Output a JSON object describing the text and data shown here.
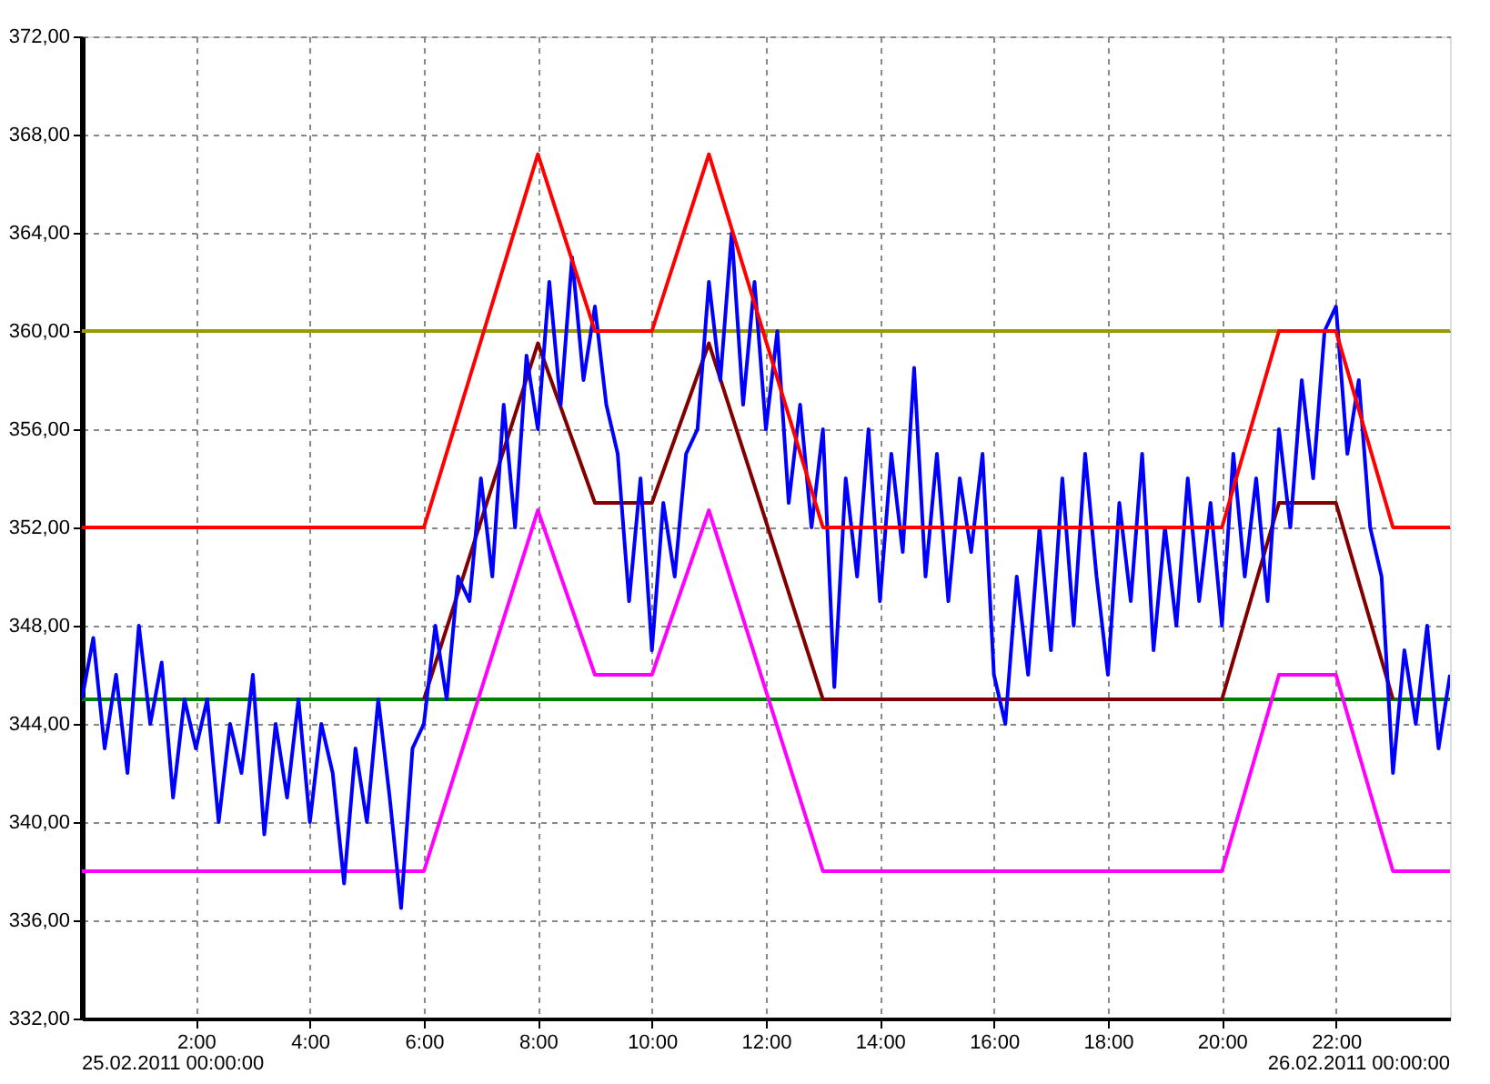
{
  "chart_data": {
    "type": "line",
    "xlim": [
      0,
      24
    ],
    "ylim": [
      332,
      372
    ],
    "annotations": [
      "25.02.2011 00:00:00",
      "26.02.2011 00:00:00"
    ],
    "xticks": [
      {
        "value": 2,
        "label": "2:00"
      },
      {
        "value": 4,
        "label": "4:00"
      },
      {
        "value": 6,
        "label": "6:00"
      },
      {
        "value": 8,
        "label": "8:00"
      },
      {
        "value": 10,
        "label": "10:00"
      },
      {
        "value": 12,
        "label": "12:00"
      },
      {
        "value": 14,
        "label": "14:00"
      },
      {
        "value": 16,
        "label": "16:00"
      },
      {
        "value": 18,
        "label": "18:00"
      },
      {
        "value": 20,
        "label": "20:00"
      },
      {
        "value": 22,
        "label": "22:00"
      }
    ],
    "yticks": [
      {
        "value": 332,
        "label": "332,00"
      },
      {
        "value": 336,
        "label": "336,00"
      },
      {
        "value": 340,
        "label": "340,00"
      },
      {
        "value": 344,
        "label": "344,00"
      },
      {
        "value": 348,
        "label": "348,00"
      },
      {
        "value": 352,
        "label": "352,00"
      },
      {
        "value": 356,
        "label": "356,00"
      },
      {
        "value": 360,
        "label": "360,00"
      },
      {
        "value": 364,
        "label": "364,00"
      },
      {
        "value": 368,
        "label": "368,00"
      },
      {
        "value": 372,
        "label": "372,00"
      }
    ],
    "grid": true,
    "legend": false,
    "line_style": "solid",
    "marker": "none",
    "ref_lines": [
      {
        "axis": "y",
        "value": 360,
        "label": null,
        "color": "#999900"
      },
      {
        "axis": "y",
        "value": 345,
        "label": null,
        "color": "#008000"
      }
    ],
    "series": [
      {
        "color": "#ff00ff",
        "x": [
          0,
          6,
          8,
          9,
          10,
          11,
          13,
          20,
          21,
          22,
          23,
          24
        ],
        "values": [
          338,
          338,
          352.7,
          346,
          346,
          352.7,
          338,
          338,
          346,
          346,
          338,
          338
        ]
      },
      {
        "color": "#800000",
        "x": [
          6,
          8,
          9,
          10,
          11,
          13,
          20,
          21,
          22,
          23
        ],
        "values": [
          345,
          359.5,
          353,
          353,
          359.5,
          345,
          345,
          353,
          353,
          345
        ]
      },
      {
        "color": "#0000ff",
        "x": [
          0,
          0.2,
          0.4,
          0.6,
          0.8,
          1,
          1.2,
          1.4,
          1.6,
          1.8,
          2,
          2.2,
          2.4,
          2.6,
          2.8,
          3,
          3.2,
          3.4,
          3.6,
          3.8,
          4,
          4.2,
          4.4,
          4.6,
          4.8,
          5,
          5.2,
          5.4,
          5.6,
          5.8,
          6,
          6.2,
          6.4,
          6.6,
          6.8,
          7,
          7.2,
          7.4,
          7.6,
          7.8,
          8,
          8.2,
          8.4,
          8.6,
          8.8,
          9,
          9.2,
          9.4,
          9.6,
          9.8,
          10,
          10.2,
          10.4,
          10.6,
          10.8,
          11,
          11.2,
          11.4,
          11.6,
          11.8,
          12,
          12.2,
          12.4,
          12.6,
          12.8,
          13,
          13.2,
          13.4,
          13.6,
          13.8,
          14,
          14.2,
          14.4,
          14.6,
          14.8,
          15,
          15.2,
          15.4,
          15.6,
          15.8,
          16,
          16.2,
          16.4,
          16.6,
          16.8,
          17,
          17.2,
          17.4,
          17.6,
          17.8,
          18,
          18.2,
          18.4,
          18.6,
          18.8,
          19,
          19.2,
          19.4,
          19.6,
          19.8,
          20,
          20.2,
          20.4,
          20.6,
          20.8,
          21,
          21.2,
          21.4,
          21.6,
          21.8,
          22,
          22.2,
          22.4,
          22.6,
          22.8,
          23,
          23.2,
          23.4,
          23.6,
          23.8,
          24
        ],
        "values": [
          345,
          347.5,
          343,
          346,
          342,
          348,
          344,
          346.5,
          341,
          345,
          343,
          345,
          340,
          344,
          342,
          346,
          339.5,
          344,
          341,
          345,
          340,
          344,
          342,
          337.5,
          343,
          340,
          345,
          341,
          336.5,
          343,
          344,
          348,
          345,
          350,
          349,
          354,
          350,
          357,
          352,
          359,
          356,
          362,
          357,
          363,
          358,
          361,
          357,
          355,
          349,
          354,
          347,
          353,
          350,
          355,
          356,
          362,
          358,
          364,
          357,
          362,
          356,
          360,
          353,
          357,
          352,
          356,
          345.5,
          354,
          350,
          356,
          349,
          355,
          351,
          358.5,
          350,
          355,
          349,
          354,
          351,
          355,
          346,
          344,
          350,
          346,
          352,
          347,
          354,
          348,
          355,
          350,
          346,
          353,
          349,
          355,
          347,
          352,
          348,
          354,
          349,
          353,
          348,
          355,
          350,
          354,
          349,
          356,
          352,
          358,
          354,
          360,
          361,
          355,
          358,
          352,
          350,
          342,
          347,
          344,
          348,
          343,
          346
        ]
      },
      {
        "color": "#ff0000",
        "x": [
          0,
          6,
          8,
          9,
          10,
          11,
          13,
          20,
          21,
          22,
          23,
          24
        ],
        "values": [
          352,
          352,
          367.2,
          360,
          360,
          367.2,
          352,
          352,
          360,
          360,
          352,
          352
        ]
      }
    ]
  }
}
